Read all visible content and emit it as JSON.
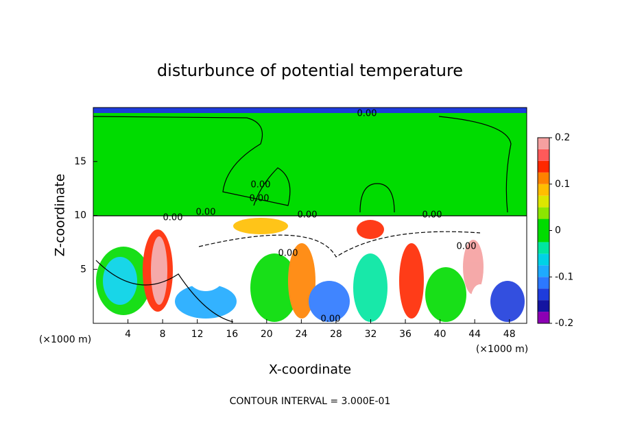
{
  "chart_data": {
    "type": "contour",
    "title": "disturbunce of potential temperature",
    "x_label": "X-coordinate",
    "y_label": "Z-coordinate",
    "x_unit": "(×1000 m)",
    "footer": "CONTOUR INTERVAL = 3.000E-01",
    "xlim": [
      0,
      50
    ],
    "ylim": [
      0,
      20
    ],
    "xticks": [
      4,
      8,
      12,
      16,
      20,
      24,
      28,
      32,
      36,
      40,
      44,
      48
    ],
    "yticks": [
      5,
      10,
      15
    ],
    "clim": [
      -0.2,
      0.2
    ],
    "cticks": [
      0.2,
      0.1,
      0,
      -0.1,
      -0.2
    ],
    "colors": [
      "#8c00b4",
      "#1414a0",
      "#1e3cdc",
      "#2c78ff",
      "#1eaaff",
      "#00d2e6",
      "#00e6a0",
      "#00dc00",
      "#00dc00",
      "#8ce600",
      "#dce600",
      "#ffbe00",
      "#ff8200",
      "#ff2800",
      "#ff5a5a",
      "#f5a0a0"
    ],
    "contour_labels": [
      "0.00",
      "0.00",
      "0.00",
      "0.00",
      "0.00",
      "0.00",
      "0.00",
      "0.00",
      "0.00",
      "0.00"
    ]
  }
}
